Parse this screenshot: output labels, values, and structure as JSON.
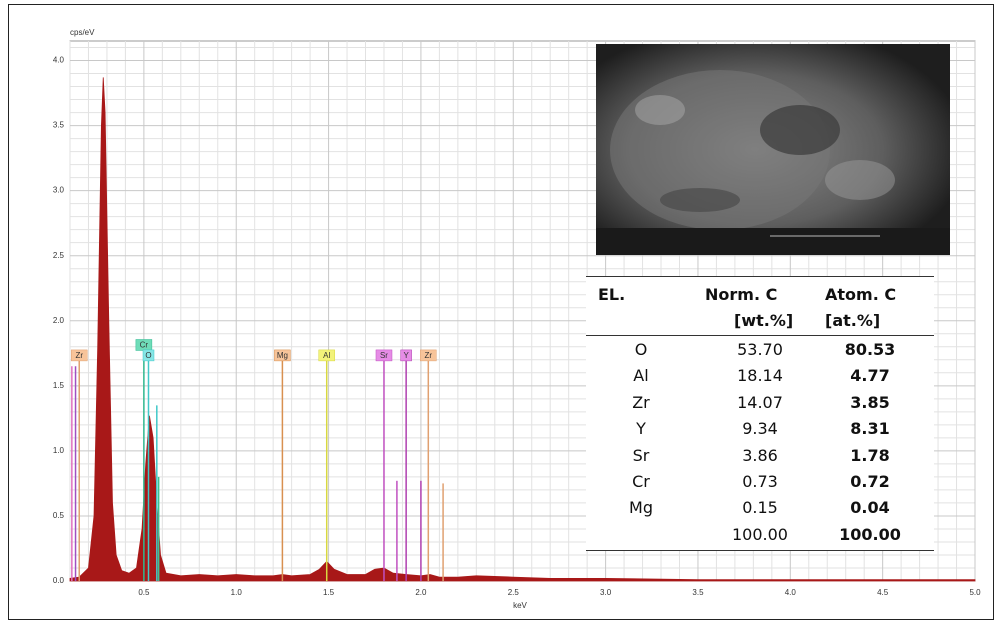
{
  "chart_data": {
    "type": "area",
    "y_label": "cps/eV",
    "x_label": "keV",
    "xlim": [
      0.1,
      5.0
    ],
    "ylim": [
      0,
      4.15
    ],
    "xticks": [
      0.5,
      {
        "value": 1.0,
        "label": "1.0"
      },
      1.5,
      {
        "value": 2.0,
        "label": "2.0"
      },
      2.5,
      {
        "value": 3.0,
        "label": "3.0"
      },
      3.5,
      {
        "value": 4.0,
        "label": "4.0"
      },
      4.5,
      {
        "value": 5.0,
        "label": "5.0"
      }
    ],
    "yticks": [
      {
        "value": 0.0,
        "label": "0.0"
      },
      0.5,
      {
        "value": 1.0,
        "label": "1.0"
      },
      1.5,
      {
        "value": 2.0,
        "label": "2.0"
      },
      2.5,
      {
        "value": 3.0,
        "label": "3.0"
      },
      3.5,
      {
        "value": 4.0,
        "label": "4.0"
      }
    ],
    "grid": true,
    "spectrum": {
      "color": "#a81818",
      "x": [
        0.1,
        0.15,
        0.2,
        0.23,
        0.25,
        0.27,
        0.28,
        0.29,
        0.31,
        0.33,
        0.35,
        0.38,
        0.42,
        0.46,
        0.49,
        0.51,
        0.53,
        0.55,
        0.57,
        0.59,
        0.62,
        0.7,
        0.8,
        0.9,
        1.0,
        1.1,
        1.2,
        1.25,
        1.3,
        1.4,
        1.45,
        1.49,
        1.53,
        1.6,
        1.7,
        1.75,
        1.8,
        1.85,
        1.92,
        2.0,
        2.05,
        2.1,
        2.2,
        2.3,
        2.5,
        2.7,
        3.0,
        3.5,
        4.0,
        4.5,
        5.0
      ],
      "values": [
        0.02,
        0.03,
        0.1,
        0.5,
        1.8,
        3.5,
        3.87,
        3.6,
        2.0,
        0.6,
        0.2,
        0.08,
        0.06,
        0.1,
        0.4,
        0.9,
        1.27,
        1.1,
        0.6,
        0.2,
        0.06,
        0.04,
        0.05,
        0.04,
        0.05,
        0.04,
        0.04,
        0.05,
        0.04,
        0.05,
        0.09,
        0.15,
        0.09,
        0.05,
        0.05,
        0.09,
        0.1,
        0.06,
        0.05,
        0.04,
        0.05,
        0.03,
        0.03,
        0.04,
        0.03,
        0.02,
        0.02,
        0.01,
        0.01,
        0.01,
        0.01
      ]
    },
    "element_lines": [
      {
        "label": "Zr",
        "x": 0.15,
        "height": 1.73,
        "color": "#e0a070",
        "box": "#f7c49a"
      },
      {
        "label": "Cr",
        "x": 0.5,
        "height": 1.81,
        "color": "#30b890",
        "box": "#6fdcb8"
      },
      {
        "label": "O",
        "x": 0.525,
        "height": 1.73,
        "color": "#40c8c8",
        "box": "#86e6e6"
      },
      {
        "label": "Mg",
        "x": 1.25,
        "height": 1.73,
        "color": "#d89050",
        "box": "#f7c49a"
      },
      {
        "label": "Al",
        "x": 1.49,
        "height": 1.73,
        "color": "#d8d840",
        "box": "#f2f27a"
      },
      {
        "label": "Sr",
        "x": 1.8,
        "height": 1.73,
        "color": "#c050c0",
        "box": "#e68ce6"
      },
      {
        "label": "Y",
        "x": 1.92,
        "height": 1.73,
        "color": "#b040b0",
        "box": "#e68ce6"
      },
      {
        "label": "Zr",
        "x": 2.04,
        "height": 1.73,
        "color": "#e0a070",
        "box": "#f7c49a"
      }
    ],
    "minor_lines": [
      {
        "x": 0.11,
        "height": 1.65,
        "color": "#e070c0"
      },
      {
        "x": 0.13,
        "height": 1.65,
        "color": "#a050c0"
      },
      {
        "x": 0.57,
        "height": 1.35,
        "color": "#40c8c8"
      },
      {
        "x": 0.58,
        "height": 0.8,
        "color": "#40c090"
      },
      {
        "x": 1.87,
        "height": 0.77,
        "color": "#c050c0"
      },
      {
        "x": 2.0,
        "height": 0.77,
        "color": "#b040b0"
      },
      {
        "x": 2.12,
        "height": 0.75,
        "color": "#e0a070"
      }
    ]
  },
  "table": {
    "columns": [
      "EL.",
      "Norm. C",
      "Atom. C"
    ],
    "units": [
      "[wt.%]",
      "[at.%]"
    ],
    "rows": [
      [
        "O",
        "53.70",
        "80.53"
      ],
      [
        "Al",
        "18.14",
        "4.77"
      ],
      [
        "Zr",
        "14.07",
        "3.85"
      ],
      [
        "Y",
        "9.34",
        "8.31"
      ],
      [
        "Sr",
        "3.86",
        "1.78"
      ],
      [
        "Cr",
        "0.73",
        "0.72"
      ],
      [
        "Mg",
        "0.15",
        "0.04"
      ]
    ],
    "total": [
      "100.00",
      "100.00"
    ]
  }
}
